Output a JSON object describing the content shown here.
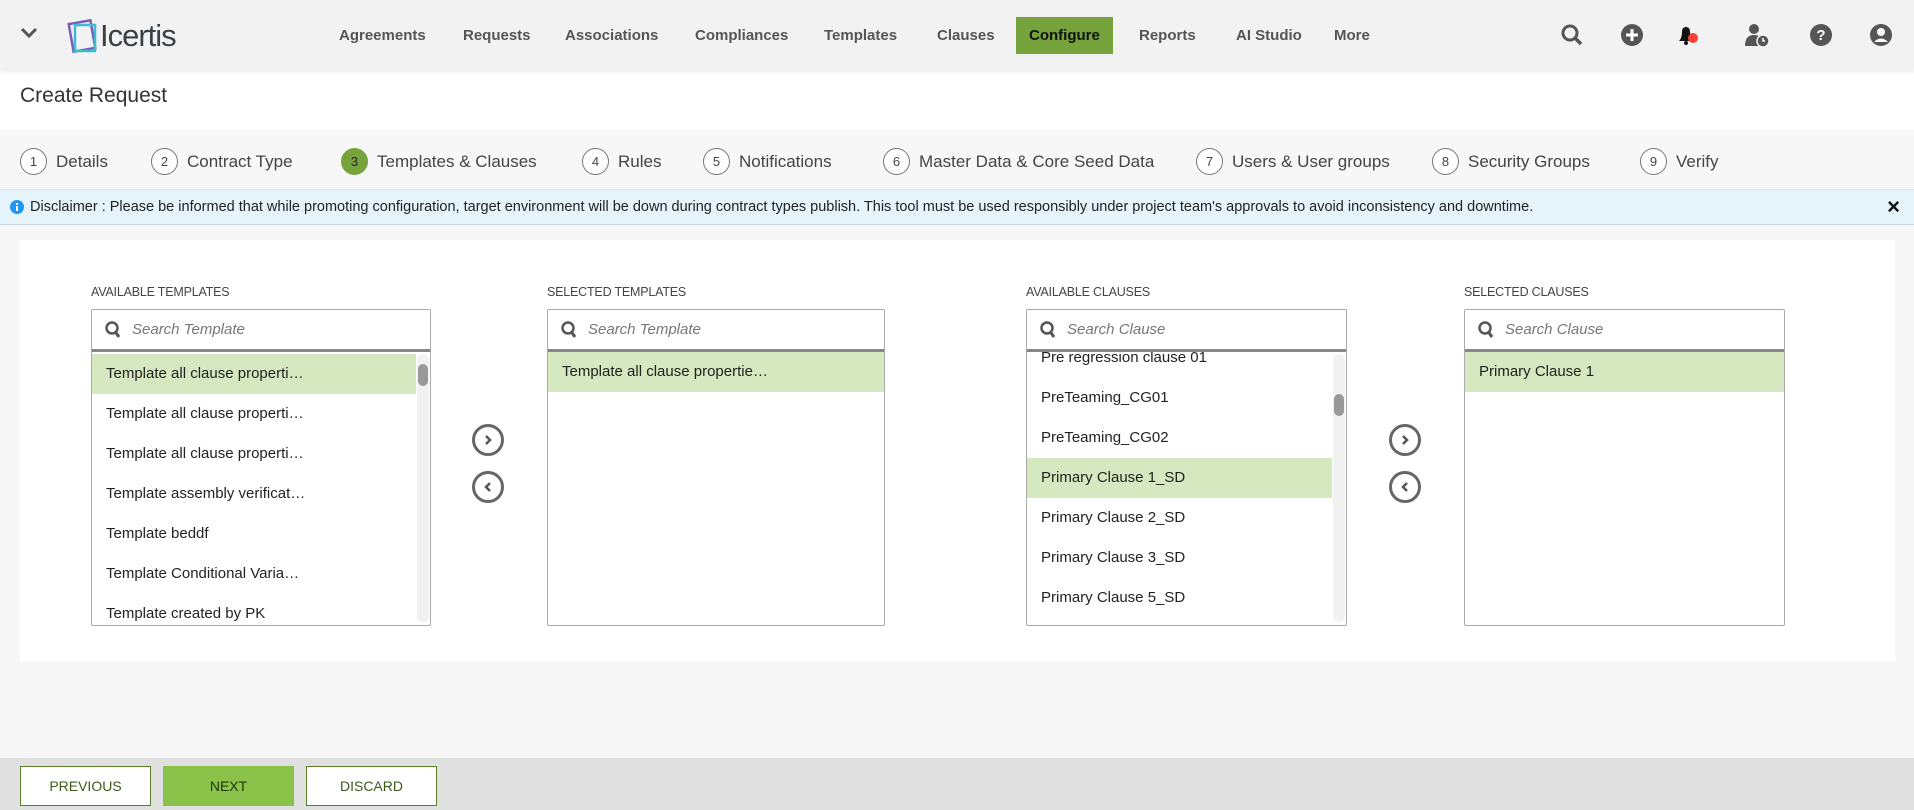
{
  "app": {
    "logo_text": "Icertis"
  },
  "nav": {
    "items": [
      {
        "label": "Agreements",
        "active": false
      },
      {
        "label": "Requests",
        "active": false
      },
      {
        "label": "Associations",
        "active": false
      },
      {
        "label": "Compliances",
        "active": false
      },
      {
        "label": "Templates",
        "active": false
      },
      {
        "label": "Clauses",
        "active": false
      },
      {
        "label": "Configure",
        "active": true
      },
      {
        "label": "Reports",
        "active": false
      },
      {
        "label": "AI Studio",
        "active": false
      },
      {
        "label": "More",
        "active": false
      }
    ],
    "icons": [
      "search-icon",
      "add-icon",
      "notification-bell-icon",
      "user-clock-icon",
      "help-icon",
      "user-profile-icon"
    ]
  },
  "page": {
    "title": "Create Request"
  },
  "steps": [
    {
      "num": "1",
      "label": "Details"
    },
    {
      "num": "2",
      "label": "Contract Type"
    },
    {
      "num": "3",
      "label": "Templates & Clauses",
      "active": true
    },
    {
      "num": "4",
      "label": "Rules"
    },
    {
      "num": "5",
      "label": "Notifications"
    },
    {
      "num": "6",
      "label": "Master Data & Core Seed Data"
    },
    {
      "num": "7",
      "label": "Users & User groups"
    },
    {
      "num": "8",
      "label": "Security Groups"
    },
    {
      "num": "9",
      "label": "Verify"
    }
  ],
  "disclaimer": {
    "text": "Disclaimer : Please be informed that while promoting configuration, target environment will be down during contract types publish. This tool must be used responsibly under project team's approvals to avoid inconsistency and downtime.",
    "close": "×"
  },
  "lists": {
    "available_templates": {
      "label": "AVAILABLE TEMPLATES",
      "placeholder": "Search Template",
      "items": [
        "Template all clause properti…",
        "Template all clause properti…",
        "Template all clause properti…",
        "Template assembly verificat…",
        "Template beddf",
        "Template Conditional Varia…",
        "Template created by PK"
      ],
      "selected_index": 0
    },
    "selected_templates": {
      "label": "SELECTED TEMPLATES",
      "placeholder": "Search Template",
      "items": [
        "Template all clause propertie…"
      ],
      "selected_index": 0
    },
    "available_clauses": {
      "label": "AVAILABLE CLAUSES",
      "placeholder": "Search Clause",
      "items": [
        "Pre regression clause 01",
        "PreTeaming_CG01",
        "PreTeaming_CG02",
        "Primary Clause 1_SD",
        "Primary Clause 2_SD",
        "Primary Clause 3_SD",
        "Primary Clause 5_SD"
      ],
      "selected_index": 3
    },
    "selected_clauses": {
      "label": "SELECTED CLAUSES",
      "placeholder": "Search Clause",
      "items": [
        "Primary Clause 1"
      ],
      "selected_index": 0
    }
  },
  "footer": {
    "previous": "PREVIOUS",
    "next": "NEXT",
    "discard": "DISCARD"
  },
  "colors": {
    "accent": "#76a33c",
    "selected_row": "#d5e8bf",
    "next_button": "#8bc34a",
    "notification_dot": "#f44336",
    "info": "#2196f3"
  }
}
